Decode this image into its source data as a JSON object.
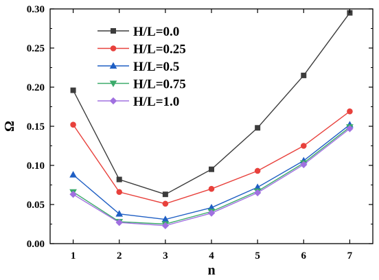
{
  "chart_data": {
    "type": "line",
    "title": "",
    "xlabel": "n",
    "ylabel": "Ω",
    "x": [
      1,
      2,
      3,
      4,
      5,
      6,
      7
    ],
    "xlim": [
      0.5,
      7.5
    ],
    "ylim": [
      0,
      0.3
    ],
    "yticks": [
      0.0,
      0.05,
      0.1,
      0.15,
      0.2,
      0.25,
      0.3
    ],
    "ytick_labels": [
      "0.00",
      "0.05",
      "0.10",
      "0.15",
      "0.20",
      "0.25",
      "0.30"
    ],
    "xtick_labels": [
      "1",
      "2",
      "3",
      "4",
      "5",
      "6",
      "7"
    ],
    "grid": false,
    "legend_position": "top-left",
    "series": [
      {
        "name": "H/L=0.0",
        "color": "#3c3c3c",
        "marker": "square",
        "values": [
          0.196,
          0.082,
          0.063,
          0.095,
          0.148,
          0.215,
          0.295
        ]
      },
      {
        "name": "H/L=0.25",
        "color": "#e8413c",
        "marker": "circle",
        "values": [
          0.152,
          0.066,
          0.051,
          0.07,
          0.093,
          0.125,
          0.169
        ]
      },
      {
        "name": "H/L=0.5",
        "color": "#1f5fc4",
        "marker": "triangle-up",
        "values": [
          0.088,
          0.038,
          0.031,
          0.046,
          0.072,
          0.106,
          0.152
        ]
      },
      {
        "name": "H/L=0.75",
        "color": "#3aaa6a",
        "marker": "triangle-down",
        "values": [
          0.066,
          0.028,
          0.025,
          0.041,
          0.067,
          0.103,
          0.149
        ]
      },
      {
        "name": "H/L=1.0",
        "color": "#a070e0",
        "marker": "diamond",
        "values": [
          0.063,
          0.027,
          0.023,
          0.039,
          0.065,
          0.101,
          0.147
        ]
      }
    ]
  }
}
